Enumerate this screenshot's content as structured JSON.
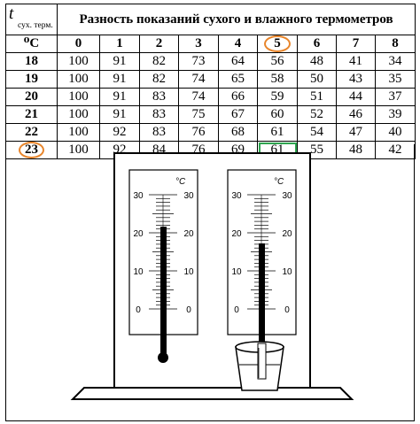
{
  "table": {
    "corner_t": "t",
    "corner_sub": "сух. терм.",
    "corner_unit": "⁰C",
    "title": "Разность показаний сухого и влажного термометров",
    "columns": [
      "0",
      "1",
      "2",
      "3",
      "4",
      "5",
      "6",
      "7",
      "8"
    ],
    "highlighted_column": "5",
    "rows": [
      {
        "t": "18",
        "values": [
          "100",
          "91",
          "82",
          "73",
          "64",
          "56",
          "48",
          "41",
          "34"
        ]
      },
      {
        "t": "19",
        "values": [
          "100",
          "91",
          "82",
          "74",
          "65",
          "58",
          "50",
          "43",
          "35"
        ]
      },
      {
        "t": "20",
        "values": [
          "100",
          "91",
          "83",
          "74",
          "66",
          "59",
          "51",
          "44",
          "37"
        ]
      },
      {
        "t": "21",
        "values": [
          "100",
          "91",
          "83",
          "75",
          "67",
          "60",
          "52",
          "46",
          "39"
        ]
      },
      {
        "t": "22",
        "values": [
          "100",
          "92",
          "83",
          "76",
          "68",
          "61",
          "54",
          "47",
          "40"
        ]
      },
      {
        "t": "23",
        "values": [
          "100",
          "92",
          "84",
          "76",
          "69",
          "61",
          "55",
          "48",
          "42"
        ]
      }
    ],
    "highlighted_row": "23",
    "highlighted_cell": "61"
  },
  "thermometers": {
    "dry": {
      "unit": "°C",
      "ticks": [
        "30",
        "20",
        "10",
        "0"
      ],
      "reading": 23
    },
    "wet": {
      "unit": "°C",
      "ticks": [
        "30",
        "20",
        "10",
        "0"
      ],
      "reading": 17
    }
  },
  "colors": {
    "highlight_orange": "#e8852b",
    "highlight_green": "#2ea44f"
  }
}
